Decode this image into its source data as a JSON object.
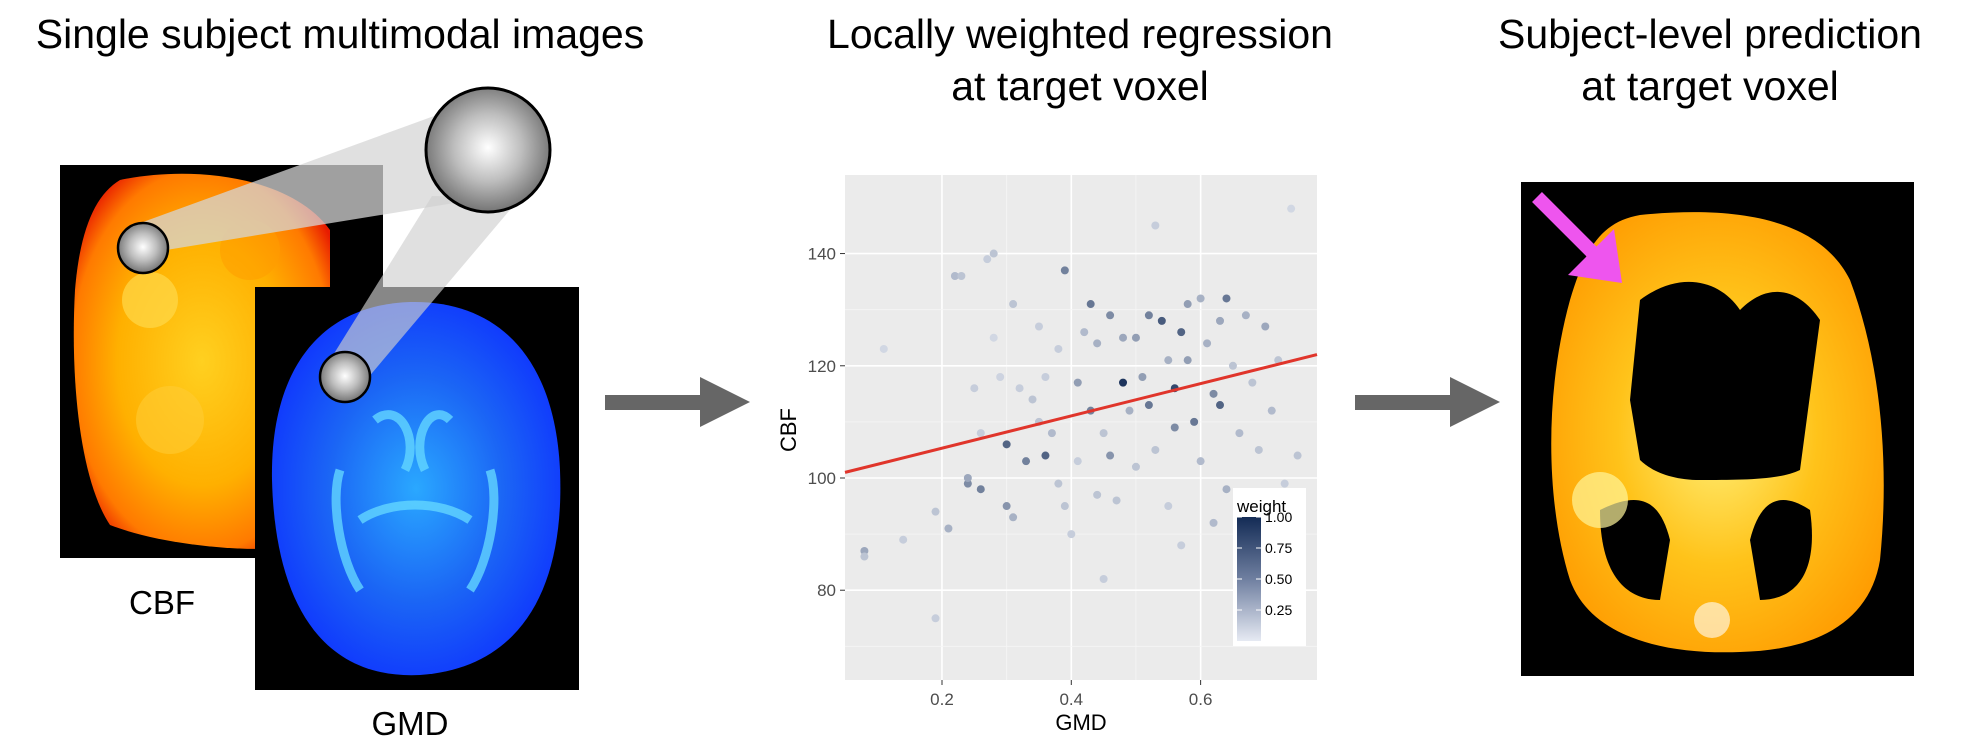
{
  "titles": {
    "left": "Single subject multimodal images",
    "middle": "Locally weighted regression\nat target voxel",
    "right": "Subject-level prediction\nat target voxel"
  },
  "image_labels": {
    "cbf": "CBF",
    "gmd": "GMD"
  },
  "colors": {
    "cbf_map": "#ffb000",
    "gmd_map": "#1a66ff",
    "prediction_map": "#ffb800",
    "flow_arrow": "#666666",
    "highlight_arrow": "#ee55ee",
    "regression_line": "#e0352b",
    "plot_panel": "#ebebeb"
  },
  "chart_data": {
    "type": "scatter",
    "xlabel": "GMD",
    "ylabel": "CBF",
    "xlim": [
      0.05,
      0.78
    ],
    "ylim": [
      64,
      154
    ],
    "xticks": [
      "0.2",
      "0.4",
      "0.6"
    ],
    "xtick_values": [
      0.2,
      0.4,
      0.6
    ],
    "yticks": [
      "80",
      "100",
      "120",
      "140"
    ],
    "ytick_values": [
      80,
      100,
      120,
      140
    ],
    "grid": true,
    "legend": {
      "title": "weight",
      "ticks": [
        "1.00",
        "0.75",
        "0.50",
        "0.25"
      ],
      "tick_values": [
        1.0,
        0.75,
        0.5,
        0.25
      ],
      "position": "bottom-right"
    },
    "regression_line": {
      "x": [
        0.05,
        0.78
      ],
      "y": [
        101,
        122
      ]
    },
    "points": [
      {
        "x": 0.08,
        "y": 87,
        "w": 0.35
      },
      {
        "x": 0.08,
        "y": 86,
        "w": 0.2
      },
      {
        "x": 0.11,
        "y": 123,
        "w": 0.1
      },
      {
        "x": 0.14,
        "y": 89,
        "w": 0.15
      },
      {
        "x": 0.19,
        "y": 94,
        "w": 0.2
      },
      {
        "x": 0.19,
        "y": 75,
        "w": 0.15
      },
      {
        "x": 0.21,
        "y": 91,
        "w": 0.3
      },
      {
        "x": 0.22,
        "y": 136,
        "w": 0.25
      },
      {
        "x": 0.23,
        "y": 136,
        "w": 0.2
      },
      {
        "x": 0.24,
        "y": 99,
        "w": 0.5
      },
      {
        "x": 0.24,
        "y": 100,
        "w": 0.35
      },
      {
        "x": 0.25,
        "y": 116,
        "w": 0.15
      },
      {
        "x": 0.26,
        "y": 108,
        "w": 0.15
      },
      {
        "x": 0.26,
        "y": 98,
        "w": 0.55
      },
      {
        "x": 0.27,
        "y": 139,
        "w": 0.15
      },
      {
        "x": 0.28,
        "y": 140,
        "w": 0.2
      },
      {
        "x": 0.28,
        "y": 125,
        "w": 0.1
      },
      {
        "x": 0.29,
        "y": 118,
        "w": 0.12
      },
      {
        "x": 0.3,
        "y": 106,
        "w": 0.7
      },
      {
        "x": 0.3,
        "y": 95,
        "w": 0.45
      },
      {
        "x": 0.31,
        "y": 131,
        "w": 0.2
      },
      {
        "x": 0.31,
        "y": 93,
        "w": 0.3
      },
      {
        "x": 0.32,
        "y": 116,
        "w": 0.15
      },
      {
        "x": 0.33,
        "y": 103,
        "w": 0.55
      },
      {
        "x": 0.34,
        "y": 114,
        "w": 0.2
      },
      {
        "x": 0.35,
        "y": 127,
        "w": 0.15
      },
      {
        "x": 0.35,
        "y": 110,
        "w": 0.2
      },
      {
        "x": 0.36,
        "y": 104,
        "w": 0.7
      },
      {
        "x": 0.37,
        "y": 108,
        "w": 0.25
      },
      {
        "x": 0.38,
        "y": 99,
        "w": 0.2
      },
      {
        "x": 0.38,
        "y": 123,
        "w": 0.15
      },
      {
        "x": 0.39,
        "y": 137,
        "w": 0.55
      },
      {
        "x": 0.39,
        "y": 95,
        "w": 0.2
      },
      {
        "x": 0.4,
        "y": 90,
        "w": 0.15
      },
      {
        "x": 0.41,
        "y": 117,
        "w": 0.4
      },
      {
        "x": 0.41,
        "y": 103,
        "w": 0.15
      },
      {
        "x": 0.42,
        "y": 126,
        "w": 0.25
      },
      {
        "x": 0.43,
        "y": 131,
        "w": 0.6
      },
      {
        "x": 0.43,
        "y": 112,
        "w": 0.55
      },
      {
        "x": 0.44,
        "y": 124,
        "w": 0.3
      },
      {
        "x": 0.45,
        "y": 108,
        "w": 0.2
      },
      {
        "x": 0.45,
        "y": 82,
        "w": 0.15
      },
      {
        "x": 0.46,
        "y": 129,
        "w": 0.5
      },
      {
        "x": 0.46,
        "y": 104,
        "w": 0.45
      },
      {
        "x": 0.47,
        "y": 96,
        "w": 0.2
      },
      {
        "x": 0.48,
        "y": 125,
        "w": 0.35
      },
      {
        "x": 0.48,
        "y": 117,
        "w": 0.95
      },
      {
        "x": 0.49,
        "y": 112,
        "w": 0.3
      },
      {
        "x": 0.5,
        "y": 125,
        "w": 0.4
      },
      {
        "x": 0.5,
        "y": 102,
        "w": 0.2
      },
      {
        "x": 0.51,
        "y": 118,
        "w": 0.4
      },
      {
        "x": 0.52,
        "y": 129,
        "w": 0.55
      },
      {
        "x": 0.52,
        "y": 113,
        "w": 0.6
      },
      {
        "x": 0.53,
        "y": 145,
        "w": 0.15
      },
      {
        "x": 0.53,
        "y": 105,
        "w": 0.2
      },
      {
        "x": 0.54,
        "y": 128,
        "w": 0.75
      },
      {
        "x": 0.55,
        "y": 121,
        "w": 0.3
      },
      {
        "x": 0.55,
        "y": 95,
        "w": 0.15
      },
      {
        "x": 0.56,
        "y": 116,
        "w": 0.85
      },
      {
        "x": 0.56,
        "y": 109,
        "w": 0.5
      },
      {
        "x": 0.57,
        "y": 126,
        "w": 0.7
      },
      {
        "x": 0.57,
        "y": 88,
        "w": 0.15
      },
      {
        "x": 0.58,
        "y": 121,
        "w": 0.4
      },
      {
        "x": 0.59,
        "y": 110,
        "w": 0.6
      },
      {
        "x": 0.6,
        "y": 132,
        "w": 0.3
      },
      {
        "x": 0.6,
        "y": 103,
        "w": 0.25
      },
      {
        "x": 0.61,
        "y": 124,
        "w": 0.3
      },
      {
        "x": 0.62,
        "y": 115,
        "w": 0.5
      },
      {
        "x": 0.63,
        "y": 128,
        "w": 0.35
      },
      {
        "x": 0.63,
        "y": 113,
        "w": 0.7
      },
      {
        "x": 0.64,
        "y": 132,
        "w": 0.6
      },
      {
        "x": 0.64,
        "y": 98,
        "w": 0.3
      },
      {
        "x": 0.65,
        "y": 120,
        "w": 0.2
      },
      {
        "x": 0.66,
        "y": 108,
        "w": 0.25
      },
      {
        "x": 0.67,
        "y": 129,
        "w": 0.3
      },
      {
        "x": 0.67,
        "y": 94,
        "w": 0.2
      },
      {
        "x": 0.68,
        "y": 117,
        "w": 0.2
      },
      {
        "x": 0.69,
        "y": 105,
        "w": 0.2
      },
      {
        "x": 0.7,
        "y": 127,
        "w": 0.35
      },
      {
        "x": 0.71,
        "y": 112,
        "w": 0.25
      },
      {
        "x": 0.72,
        "y": 121,
        "w": 0.2
      },
      {
        "x": 0.73,
        "y": 99,
        "w": 0.15
      },
      {
        "x": 0.74,
        "y": 148,
        "w": 0.1
      },
      {
        "x": 0.75,
        "y": 104,
        "w": 0.2
      },
      {
        "x": 0.58,
        "y": 131,
        "w": 0.4
      },
      {
        "x": 0.36,
        "y": 118,
        "w": 0.15
      },
      {
        "x": 0.44,
        "y": 97,
        "w": 0.2
      },
      {
        "x": 0.62,
        "y": 92,
        "w": 0.25
      }
    ]
  }
}
